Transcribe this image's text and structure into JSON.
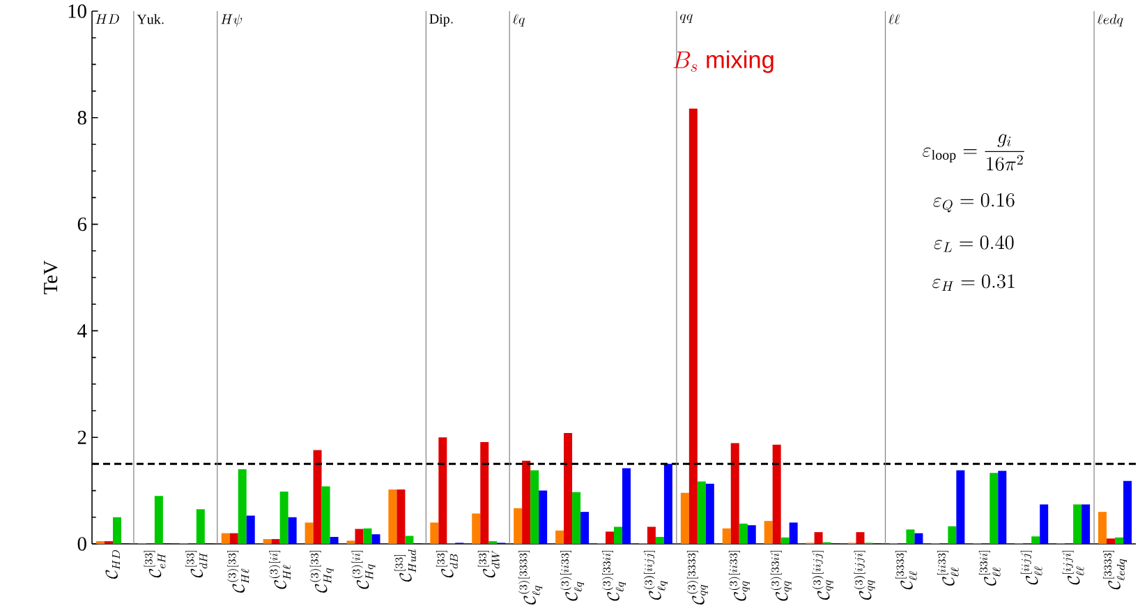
{
  "chart_data": {
    "type": "bar",
    "ylabel": "TeV",
    "ylim": [
      0,
      10
    ],
    "yticks": [
      0,
      2,
      4,
      6,
      8,
      10
    ],
    "categories": [
      "\\mathcal{C}_{HD}",
      "\\mathcal{C}_{eH}^{[33]}",
      "\\mathcal{C}_{dH}^{[33]}",
      "\\mathcal{C}_{H\\ell}^{(3)[33]}",
      "\\mathcal{C}_{H\\ell}^{(3)[ii]}",
      "\\mathcal{C}_{Hq}^{(3)[33]}",
      "\\mathcal{C}_{Hq}^{(3)[ii]}",
      "\\mathcal{C}_{Hud}^{[33]}",
      "\\mathcal{C}_{dB}^{[33]}",
      "\\mathcal{C}_{dW}^{[33]}",
      "\\mathcal{C}_{\\ell q}^{(3)[3333]}",
      "\\mathcal{C}_{\\ell q}^{(3)[ii33]}",
      "\\mathcal{C}_{\\ell q}^{(3)[33ii]}",
      "\\mathcal{C}_{\\ell q}^{(3)[iijj]}",
      "\\mathcal{C}_{qq}^{(3)[3333]}",
      "\\mathcal{C}_{qq}^{(3)[ii33]}",
      "\\mathcal{C}_{qq}^{(3)[33ii]}",
      "\\mathcal{C}_{qq}^{(3)[iijj]}",
      "\\mathcal{C}_{qq}^{(3)[ijji]}",
      "\\mathcal{C}_{\\ell\\ell}^{[3333]}",
      "\\mathcal{C}_{\\ell\\ell}^{[ii33]}",
      "\\mathcal{C}_{\\ell\\ell}^{[33ii]}",
      "\\mathcal{C}_{\\ell\\ell}^{[iijj]}",
      "\\mathcal{C}_{\\ell\\ell}^{[ijji]}",
      "\\mathcal{C}_{\\ell edq}^{[3333]}"
    ],
    "series": [
      {
        "color": "#ff8000",
        "values": [
          0.05,
          0.01,
          0.01,
          0.2,
          0.09,
          0.4,
          0.06,
          1.02,
          0.4,
          0.57,
          0.67,
          0.25,
          0.01,
          0.01,
          0.96,
          0.29,
          0.43,
          0.02,
          0.02,
          0.01,
          0.01,
          0.01,
          0.01,
          0.01,
          0.6
        ]
      },
      {
        "color": "#e00000",
        "values": [
          0.05,
          0.01,
          0.01,
          0.2,
          0.09,
          1.76,
          0.28,
          1.02,
          2.0,
          1.91,
          1.56,
          2.08,
          0.23,
          0.32,
          8.17,
          1.89,
          1.86,
          0.22,
          0.22,
          0.01,
          0.01,
          0.01,
          0.01,
          0.01,
          0.1
        ]
      },
      {
        "color": "#00c800",
        "values": [
          0.5,
          0.9,
          0.65,
          1.4,
          0.98,
          1.08,
          0.29,
          0.15,
          0.01,
          0.05,
          1.38,
          0.97,
          0.32,
          0.13,
          1.17,
          0.38,
          0.12,
          0.03,
          0.02,
          0.27,
          0.33,
          1.33,
          0.14,
          0.74,
          0.12
        ]
      },
      {
        "color": "#0000ff",
        "values": [
          0.01,
          0.01,
          0.01,
          0.53,
          0.5,
          0.13,
          0.18,
          0.01,
          0.02,
          0.02,
          1.0,
          0.6,
          1.42,
          1.5,
          1.13,
          0.35,
          0.4,
          0.01,
          0.01,
          0.2,
          1.38,
          1.37,
          0.74,
          0.74,
          1.18
        ]
      }
    ],
    "ref_lines": [
      {
        "axis": "y",
        "value": 1.5,
        "color": "#000000",
        "line_style": "dashed"
      }
    ],
    "annotations": [
      "HD",
      "\\mathrm{Yuk.}",
      "H\\psi",
      "\\mathrm{Dip.}",
      "\\ell q",
      "qq",
      "\\ell\\ell",
      "\\ell edq",
      "B_s\\ \\textsf{mixing}",
      "\\varepsilon_{\\mathrm{loop}} = \\frac{g_i}{16\\pi^2}",
      "\\varepsilon_Q = 0.16",
      "\\varepsilon_L = 0.40",
      "\\varepsilon_H = 0.31"
    ]
  }
}
